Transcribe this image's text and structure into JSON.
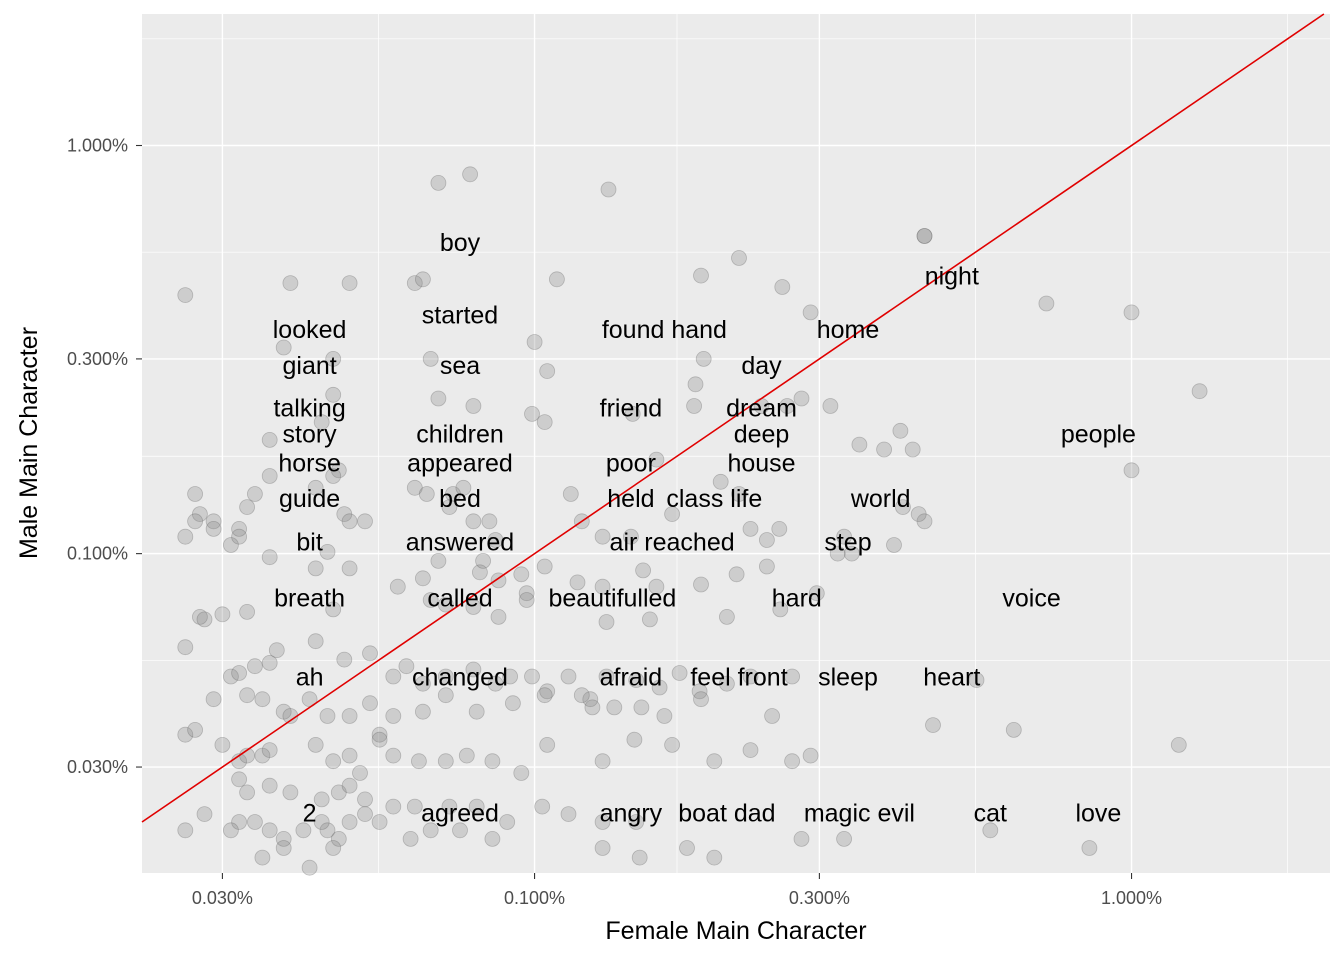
{
  "chart_data": {
    "type": "scatter",
    "scale": "log10",
    "xlabel": "Female Main Character",
    "ylabel": "Male Main Character",
    "xlim": [
      0.022,
      2.15
    ],
    "ylim": [
      0.0165,
      2.1
    ],
    "x_ticks": [
      "0.030%",
      "0.100%",
      "0.300%",
      "1.000%"
    ],
    "y_ticks": [
      "0.030%",
      "0.100%",
      "0.300%",
      "1.000%"
    ],
    "x_tick_values": [
      0.03,
      0.1,
      0.3,
      1.0
    ],
    "y_tick_values": [
      0.03,
      0.1,
      0.3,
      1.0
    ],
    "reference_line": "y = x",
    "colors": {
      "panel": "#EBEBEB",
      "grid": "#FFFFFF",
      "points": "#808080",
      "reference_line": "#E00000"
    },
    "words": [
      {
        "word": "boy",
        "x": 0.075,
        "y": 0.58
      },
      {
        "word": "night",
        "x": 0.5,
        "y": 0.48
      },
      {
        "word": "started",
        "x": 0.075,
        "y": 0.385
      },
      {
        "word": "looked",
        "x": 0.042,
        "y": 0.355
      },
      {
        "word": "found hand",
        "x": 0.165,
        "y": 0.355
      },
      {
        "word": "home",
        "x": 0.335,
        "y": 0.355
      },
      {
        "word": "giant",
        "x": 0.042,
        "y": 0.29
      },
      {
        "word": "sea",
        "x": 0.075,
        "y": 0.29
      },
      {
        "word": "day",
        "x": 0.24,
        "y": 0.29
      },
      {
        "word": "talking",
        "x": 0.042,
        "y": 0.228
      },
      {
        "word": "friend",
        "x": 0.145,
        "y": 0.228
      },
      {
        "word": "dream",
        "x": 0.24,
        "y": 0.228
      },
      {
        "word": "story",
        "x": 0.042,
        "y": 0.197
      },
      {
        "word": "children",
        "x": 0.075,
        "y": 0.197
      },
      {
        "word": "deep",
        "x": 0.24,
        "y": 0.197
      },
      {
        "word": "people",
        "x": 0.88,
        "y": 0.197
      },
      {
        "word": "horse",
        "x": 0.042,
        "y": 0.167
      },
      {
        "word": "appeared",
        "x": 0.075,
        "y": 0.167
      },
      {
        "word": "poor",
        "x": 0.145,
        "y": 0.167
      },
      {
        "word": "house",
        "x": 0.24,
        "y": 0.167
      },
      {
        "word": "guide",
        "x": 0.042,
        "y": 0.137
      },
      {
        "word": "bed",
        "x": 0.075,
        "y": 0.137
      },
      {
        "word": "held",
        "x": 0.145,
        "y": 0.137
      },
      {
        "word": "class life",
        "x": 0.2,
        "y": 0.137
      },
      {
        "word": "world",
        "x": 0.38,
        "y": 0.137
      },
      {
        "word": "bit",
        "x": 0.042,
        "y": 0.107
      },
      {
        "word": "answered",
        "x": 0.075,
        "y": 0.107
      },
      {
        "word": "air reached",
        "x": 0.17,
        "y": 0.107
      },
      {
        "word": "step",
        "x": 0.335,
        "y": 0.107
      },
      {
        "word": "breath",
        "x": 0.042,
        "y": 0.078
      },
      {
        "word": "called",
        "x": 0.075,
        "y": 0.078
      },
      {
        "word": "beautifulled",
        "x": 0.135,
        "y": 0.078
      },
      {
        "word": "hard",
        "x": 0.275,
        "y": 0.078
      },
      {
        "word": "voice",
        "x": 0.68,
        "y": 0.078
      },
      {
        "word": "ah",
        "x": 0.042,
        "y": 0.05
      },
      {
        "word": "changed",
        "x": 0.075,
        "y": 0.05
      },
      {
        "word": "afraid",
        "x": 0.145,
        "y": 0.05
      },
      {
        "word": "feel front",
        "x": 0.22,
        "y": 0.05
      },
      {
        "word": "sleep",
        "x": 0.335,
        "y": 0.05
      },
      {
        "word": "heart",
        "x": 0.5,
        "y": 0.05
      },
      {
        "word": "2",
        "x": 0.042,
        "y": 0.0232
      },
      {
        "word": "agreed",
        "x": 0.075,
        "y": 0.0232
      },
      {
        "word": "angry",
        "x": 0.145,
        "y": 0.0232
      },
      {
        "word": "boat dad",
        "x": 0.21,
        "y": 0.0232
      },
      {
        "word": "magic evil",
        "x": 0.35,
        "y": 0.0232
      },
      {
        "word": "cat",
        "x": 0.58,
        "y": 0.0232
      },
      {
        "word": "love",
        "x": 0.88,
        "y": 0.0232
      }
    ],
    "points": [
      [
        0.026,
        0.43
      ],
      [
        0.039,
        0.46
      ],
      [
        0.049,
        0.46
      ],
      [
        0.063,
        0.46
      ],
      [
        0.065,
        0.47
      ],
      [
        0.069,
        0.81
      ],
      [
        0.078,
        0.85
      ],
      [
        0.109,
        0.47
      ],
      [
        0.133,
        0.78
      ],
      [
        0.19,
        0.48
      ],
      [
        0.22,
        0.53
      ],
      [
        0.26,
        0.45
      ],
      [
        0.29,
        0.39
      ],
      [
        0.45,
        0.6
      ],
      [
        0.72,
        0.41
      ],
      [
        1.0,
        0.39
      ],
      [
        1.3,
        0.25
      ],
      [
        1.0,
        0.16
      ],
      [
        0.038,
        0.32
      ],
      [
        0.046,
        0.3
      ],
      [
        0.067,
        0.3
      ],
      [
        0.1,
        0.33
      ],
      [
        0.105,
        0.28
      ],
      [
        0.069,
        0.24
      ],
      [
        0.079,
        0.23
      ],
      [
        0.099,
        0.22
      ],
      [
        0.104,
        0.21
      ],
      [
        0.146,
        0.22
      ],
      [
        0.185,
        0.23
      ],
      [
        0.186,
        0.26
      ],
      [
        0.192,
        0.3
      ],
      [
        0.24,
        0.23
      ],
      [
        0.265,
        0.23
      ],
      [
        0.28,
        0.24
      ],
      [
        0.044,
        0.21
      ],
      [
        0.047,
        0.16
      ],
      [
        0.036,
        0.19
      ],
      [
        0.046,
        0.245
      ],
      [
        0.313,
        0.23
      ],
      [
        0.35,
        0.185
      ],
      [
        0.385,
        0.18
      ],
      [
        0.43,
        0.18
      ],
      [
        0.41,
        0.2
      ],
      [
        0.45,
        0.6
      ],
      [
        0.027,
        0.14
      ],
      [
        0.0275,
        0.125
      ],
      [
        0.027,
        0.12
      ],
      [
        0.029,
        0.12
      ],
      [
        0.032,
        0.115
      ],
      [
        0.033,
        0.13
      ],
      [
        0.034,
        0.14
      ],
      [
        0.036,
        0.155
      ],
      [
        0.043,
        0.145
      ],
      [
        0.046,
        0.155
      ],
      [
        0.048,
        0.125
      ],
      [
        0.049,
        0.12
      ],
      [
        0.052,
        0.12
      ],
      [
        0.063,
        0.145
      ],
      [
        0.066,
        0.14
      ],
      [
        0.073,
        0.14
      ],
      [
        0.076,
        0.145
      ],
      [
        0.072,
        0.13
      ],
      [
        0.079,
        0.12
      ],
      [
        0.084,
        0.12
      ],
      [
        0.086,
        0.108
      ],
      [
        0.115,
        0.14
      ],
      [
        0.12,
        0.12
      ],
      [
        0.13,
        0.11
      ],
      [
        0.145,
        0.11
      ],
      [
        0.16,
        0.17
      ],
      [
        0.17,
        0.125
      ],
      [
        0.205,
        0.15
      ],
      [
        0.22,
        0.14
      ],
      [
        0.23,
        0.115
      ],
      [
        0.245,
        0.108
      ],
      [
        0.257,
        0.115
      ],
      [
        0.34,
        0.1
      ],
      [
        0.33,
        0.11
      ],
      [
        0.414,
        0.13
      ],
      [
        0.45,
        0.12
      ],
      [
        0.4,
        0.105
      ],
      [
        0.44,
        0.125
      ],
      [
        0.026,
        0.11
      ],
      [
        0.029,
        0.115
      ],
      [
        0.031,
        0.105
      ],
      [
        0.032,
        0.11
      ],
      [
        0.036,
        0.098
      ],
      [
        0.043,
        0.092
      ],
      [
        0.045,
        0.101
      ],
      [
        0.049,
        0.092
      ],
      [
        0.059,
        0.083
      ],
      [
        0.065,
        0.087
      ],
      [
        0.069,
        0.096
      ],
      [
        0.081,
        0.09
      ],
      [
        0.082,
        0.096
      ],
      [
        0.087,
        0.086
      ],
      [
        0.095,
        0.089
      ],
      [
        0.097,
        0.08
      ],
      [
        0.104,
        0.093
      ],
      [
        0.118,
        0.085
      ],
      [
        0.13,
        0.083
      ],
      [
        0.152,
        0.091
      ],
      [
        0.16,
        0.083
      ],
      [
        0.19,
        0.084
      ],
      [
        0.218,
        0.089
      ],
      [
        0.245,
        0.093
      ],
      [
        0.297,
        0.08
      ],
      [
        0.322,
        0.1
      ],
      [
        0.0275,
        0.07
      ],
      [
        0.028,
        0.069
      ],
      [
        0.03,
        0.071
      ],
      [
        0.033,
        0.072
      ],
      [
        0.046,
        0.073
      ],
      [
        0.067,
        0.077
      ],
      [
        0.071,
        0.075
      ],
      [
        0.079,
        0.074
      ],
      [
        0.087,
        0.07
      ],
      [
        0.097,
        0.077
      ],
      [
        0.132,
        0.068
      ],
      [
        0.156,
        0.069
      ],
      [
        0.21,
        0.07
      ],
      [
        0.258,
        0.073
      ],
      [
        0.026,
        0.059
      ],
      [
        0.031,
        0.05
      ],
      [
        0.032,
        0.051
      ],
      [
        0.034,
        0.053
      ],
      [
        0.036,
        0.054
      ],
      [
        0.037,
        0.058
      ],
      [
        0.043,
        0.061
      ],
      [
        0.048,
        0.055
      ],
      [
        0.053,
        0.057
      ],
      [
        0.058,
        0.05
      ],
      [
        0.061,
        0.053
      ],
      [
        0.065,
        0.048
      ],
      [
        0.071,
        0.05
      ],
      [
        0.079,
        0.052
      ],
      [
        0.086,
        0.048
      ],
      [
        0.091,
        0.05
      ],
      [
        0.099,
        0.05
      ],
      [
        0.105,
        0.046
      ],
      [
        0.114,
        0.05
      ],
      [
        0.124,
        0.044
      ],
      [
        0.132,
        0.05
      ],
      [
        0.148,
        0.049
      ],
      [
        0.162,
        0.047
      ],
      [
        0.175,
        0.051
      ],
      [
        0.189,
        0.046
      ],
      [
        0.21,
        0.048
      ],
      [
        0.23,
        0.05
      ],
      [
        0.27,
        0.05
      ],
      [
        0.55,
        0.049
      ],
      [
        0.029,
        0.044
      ],
      [
        0.033,
        0.045
      ],
      [
        0.035,
        0.044
      ],
      [
        0.038,
        0.041
      ],
      [
        0.039,
        0.04
      ],
      [
        0.042,
        0.044
      ],
      [
        0.045,
        0.04
      ],
      [
        0.049,
        0.04
      ],
      [
        0.053,
        0.043
      ],
      [
        0.055,
        0.036
      ],
      [
        0.058,
        0.04
      ],
      [
        0.065,
        0.041
      ],
      [
        0.071,
        0.045
      ],
      [
        0.08,
        0.041
      ],
      [
        0.092,
        0.043
      ],
      [
        0.104,
        0.045
      ],
      [
        0.12,
        0.045
      ],
      [
        0.125,
        0.042
      ],
      [
        0.136,
        0.042
      ],
      [
        0.151,
        0.042
      ],
      [
        0.165,
        0.04
      ],
      [
        0.19,
        0.044
      ],
      [
        0.25,
        0.04
      ],
      [
        0.465,
        0.038
      ],
      [
        0.635,
        0.037
      ],
      [
        1.2,
        0.034
      ],
      [
        0.026,
        0.036
      ],
      [
        0.027,
        0.037
      ],
      [
        0.03,
        0.034
      ],
      [
        0.032,
        0.031
      ],
      [
        0.033,
        0.032
      ],
      [
        0.035,
        0.032
      ],
      [
        0.036,
        0.033
      ],
      [
        0.043,
        0.034
      ],
      [
        0.046,
        0.031
      ],
      [
        0.049,
        0.032
      ],
      [
        0.051,
        0.029
      ],
      [
        0.055,
        0.035
      ],
      [
        0.058,
        0.032
      ],
      [
        0.064,
        0.031
      ],
      [
        0.071,
        0.031
      ],
      [
        0.077,
        0.032
      ],
      [
        0.085,
        0.031
      ],
      [
        0.095,
        0.029
      ],
      [
        0.105,
        0.034
      ],
      [
        0.13,
        0.031
      ],
      [
        0.147,
        0.035
      ],
      [
        0.17,
        0.034
      ],
      [
        0.2,
        0.031
      ],
      [
        0.23,
        0.033
      ],
      [
        0.29,
        0.032
      ],
      [
        0.27,
        0.031
      ],
      [
        0.032,
        0.028
      ],
      [
        0.033,
        0.026
      ],
      [
        0.036,
        0.027
      ],
      [
        0.039,
        0.026
      ],
      [
        0.044,
        0.025
      ],
      [
        0.047,
        0.026
      ],
      [
        0.049,
        0.027
      ],
      [
        0.052,
        0.025
      ],
      [
        0.058,
        0.024
      ],
      [
        0.063,
        0.024
      ],
      [
        0.072,
        0.024
      ],
      [
        0.08,
        0.024
      ],
      [
        0.09,
        0.022
      ],
      [
        0.103,
        0.024
      ],
      [
        0.114,
        0.023
      ],
      [
        0.13,
        0.022
      ],
      [
        0.148,
        0.022
      ],
      [
        0.032,
        0.022
      ],
      [
        0.034,
        0.022
      ],
      [
        0.036,
        0.021
      ],
      [
        0.038,
        0.02
      ],
      [
        0.041,
        0.021
      ],
      [
        0.045,
        0.021
      ],
      [
        0.047,
        0.02
      ],
      [
        0.049,
        0.022
      ],
      [
        0.052,
        0.023
      ],
      [
        0.055,
        0.022
      ],
      [
        0.062,
        0.02
      ],
      [
        0.067,
        0.021
      ],
      [
        0.075,
        0.021
      ],
      [
        0.085,
        0.02
      ],
      [
        0.13,
        0.019
      ],
      [
        0.15,
        0.018
      ],
      [
        0.18,
        0.019
      ],
      [
        0.2,
        0.018
      ],
      [
        0.28,
        0.02
      ],
      [
        0.33,
        0.02
      ],
      [
        0.58,
        0.021
      ],
      [
        0.85,
        0.019
      ],
      [
        0.026,
        0.021
      ],
      [
        0.028,
        0.023
      ],
      [
        0.031,
        0.021
      ],
      [
        0.035,
        0.018
      ],
      [
        0.038,
        0.019
      ],
      [
        0.042,
        0.017
      ],
      [
        0.044,
        0.022
      ],
      [
        0.046,
        0.019
      ]
    ]
  }
}
